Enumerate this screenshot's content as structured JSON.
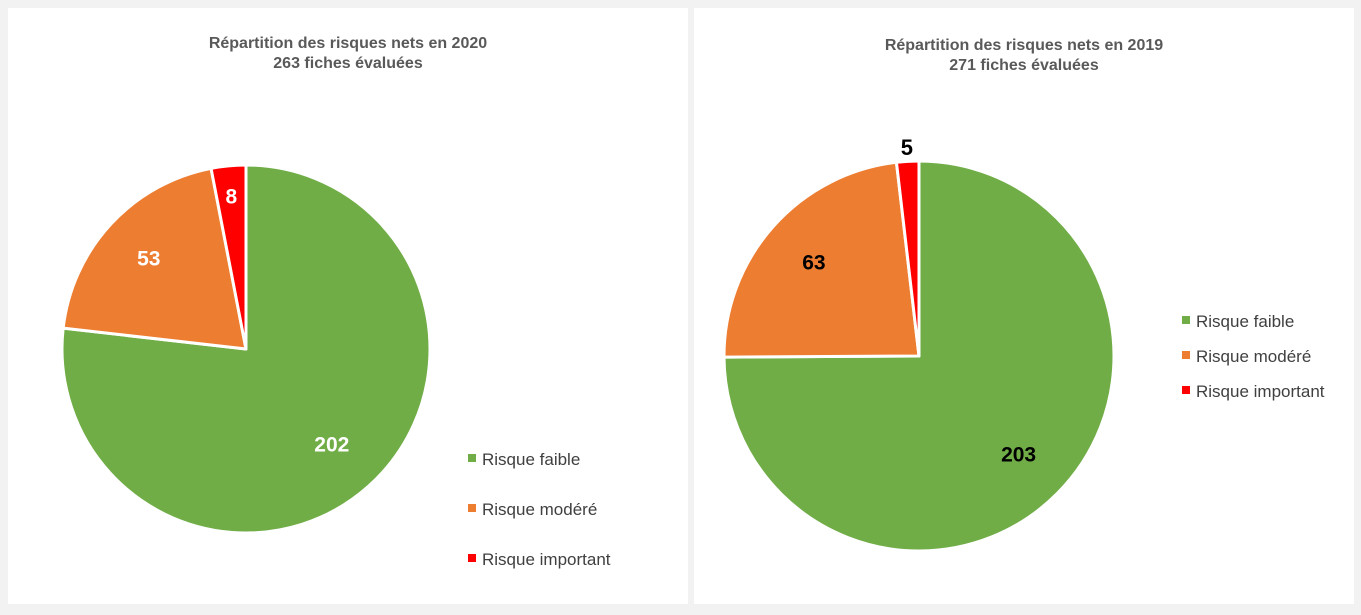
{
  "chart_data": [
    {
      "type": "pie",
      "title": "Répartition des risques nets en 2020",
      "subtitle": "263 fiches évaluées",
      "categories": [
        "Risque faible",
        "Risque modéré",
        "Risque important"
      ],
      "values": [
        202,
        53,
        8
      ],
      "colors": [
        "#70ad47",
        "#ed7d31",
        "#ff0000"
      ],
      "label_color": "#ffffff",
      "legend_position": "right"
    },
    {
      "type": "pie",
      "title": "Répartition des risques nets en 2019",
      "subtitle": "271 fiches évaluées",
      "categories": [
        "Risque faible",
        "Risque modéré",
        "Risque important"
      ],
      "values": [
        203,
        63,
        5
      ],
      "colors": [
        "#70ad47",
        "#ed7d31",
        "#ff0000"
      ],
      "label_color": "#000000",
      "legend_position": "right"
    }
  ]
}
